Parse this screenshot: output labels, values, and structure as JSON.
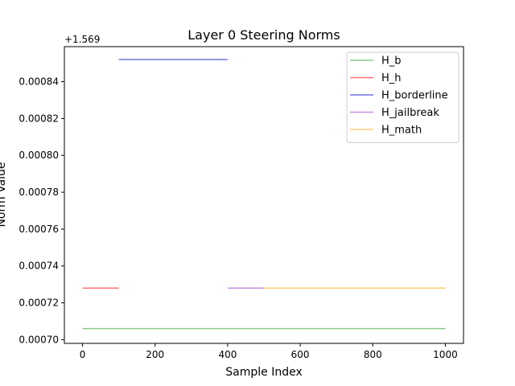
{
  "chart_data": {
    "type": "line",
    "title": "Layer 0 Steering Norms",
    "xlabel": "Sample Index",
    "ylabel": "Norm Value",
    "offset_label": "+1.569",
    "xlim": [
      -50,
      1050
    ],
    "ylim": [
      0.000698,
      0.000859
    ],
    "xticks": [
      0,
      200,
      400,
      600,
      800,
      1000
    ],
    "yticks": [
      0.0007,
      0.00072,
      0.00074,
      0.00076,
      0.00078,
      0.0008,
      0.00082,
      0.00084
    ],
    "ytick_labels": [
      "0.00070",
      "0.00072",
      "0.00074",
      "0.00076",
      "0.00078",
      "0.00080",
      "0.00082",
      "0.00084"
    ],
    "grid": false,
    "legend_position": "top-right",
    "series": [
      {
        "name": "H_b",
        "color": "#2ca02c",
        "x": [
          0,
          1000
        ],
        "y": [
          0.000706,
          0.000706
        ]
      },
      {
        "name": "H_h",
        "color": "#ff0000",
        "x": [
          0,
          100
        ],
        "y": [
          0.000728,
          0.000728
        ]
      },
      {
        "name": "H_borderline",
        "color": "#0000cc",
        "x": [
          100,
          400
        ],
        "y": [
          0.000852,
          0.000852
        ]
      },
      {
        "name": "H_jailbreak",
        "color": "#9932cc",
        "x": [
          400,
          500
        ],
        "y": [
          0.000728,
          0.000728
        ]
      },
      {
        "name": "H_math",
        "color": "#ffa500",
        "x": [
          500,
          1000
        ],
        "y": [
          0.000728,
          0.000728
        ]
      }
    ]
  }
}
